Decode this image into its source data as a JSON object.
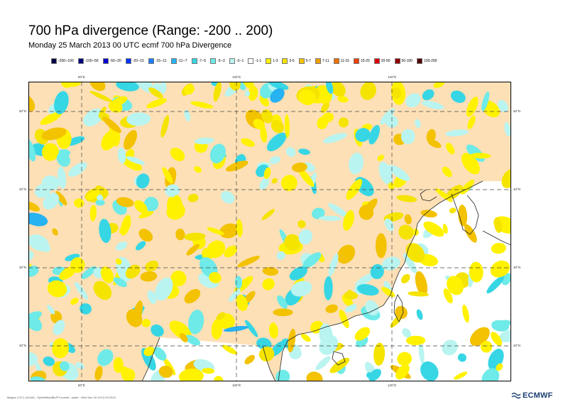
{
  "header": {
    "title": "700 hPa divergence (Range: -200 .. 200)",
    "subtitle": "Monday 25 March 2013 00 UTC ecmf 700 hPa  Divergence"
  },
  "legend": [
    {
      "label": "-200--100",
      "color": "#000044"
    },
    {
      "label": "-100--50",
      "color": "#000080"
    },
    {
      "label": "-50--20",
      "color": "#0000cc"
    },
    {
      "label": "-20--15",
      "color": "#0033ff"
    },
    {
      "label": "-15--11",
      "color": "#1c7cff"
    },
    {
      "label": "-11--7",
      "color": "#27b2f2"
    },
    {
      "label": "-7--5",
      "color": "#37d6e4"
    },
    {
      "label": "-5--3",
      "color": "#6eeae8"
    },
    {
      "label": "-3--1",
      "color": "#b9f4f0"
    },
    {
      "label": "-1-1",
      "color": "#ffffff"
    },
    {
      "label": "1-3",
      "color": "#fff200"
    },
    {
      "label": "3-5",
      "color": "#f5e300"
    },
    {
      "label": "5-7",
      "color": "#f3c200"
    },
    {
      "label": "7-11",
      "color": "#f0a000"
    },
    {
      "label": "11-15",
      "color": "#f07000"
    },
    {
      "label": "15-20",
      "color": "#f04000"
    },
    {
      "label": "20-50",
      "color": "#e00000"
    },
    {
      "label": "50-100",
      "color": "#900000"
    },
    {
      "label": "100-200",
      "color": "#500000"
    }
  ],
  "map": {
    "land_color": "#fde0b6",
    "ocean_color": "#ffffff",
    "lon_ticks": [
      "80°E",
      "100°E",
      "120°E"
    ],
    "lat_ticks": [
      "50°N",
      "40°N",
      "30°N",
      "20°N"
    ]
  },
  "footer": {
    "text": "Magics 4.22.1 (64-bit) - Sylvie/Mac/Bin/PY.ecmwf - sylvie - Wed Dec 18 15:12:03 2019",
    "logo": "ECMWF"
  }
}
